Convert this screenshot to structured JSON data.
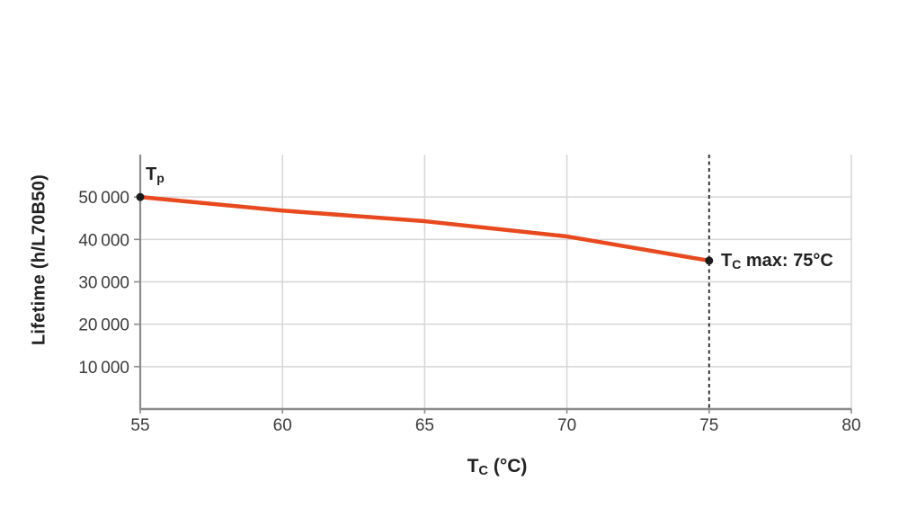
{
  "chart_data": {
    "type": "line",
    "title": "",
    "xlabel": "Tc (°C)",
    "ylabel": "Lifetime (h/L70B50)",
    "x": [
      55,
      60,
      65,
      70,
      75
    ],
    "y": [
      50000,
      46800,
      44300,
      40700,
      35000
    ],
    "xlim": [
      55,
      80
    ],
    "ylim": [
      0,
      60000
    ],
    "xticks": [
      55,
      60,
      65,
      70,
      75,
      80
    ],
    "yticks": [
      10000,
      20000,
      30000,
      40000,
      50000
    ],
    "ytick_labels": [
      "10 000",
      "20 000",
      "30 000",
      "40 000",
      "50 000"
    ],
    "grid": true,
    "legend": "none",
    "vline": {
      "x": 75,
      "style": "dashed",
      "color": "#333333"
    },
    "annotations": [
      {
        "text": "Tp",
        "x": 55,
        "y": 50000,
        "position": "above-right"
      },
      {
        "text": "Tc max: 75°C",
        "x": 75,
        "y": 35000,
        "position": "right"
      }
    ],
    "colors": {
      "line": "#e8491e",
      "marker": "#1c1c1c",
      "grid": "#d6d6d6",
      "axis": "#8c8c8c",
      "tick_text": "#3b3b3b"
    }
  },
  "labels": {
    "ylabel": "Lifetime (h/L70B50)",
    "xlabel": {
      "main": "T",
      "sub": "C",
      "rest": " (°C)"
    },
    "tp": {
      "main": "T",
      "sub": "p"
    },
    "tc_max": {
      "main": "T",
      "sub": "C",
      "rest": " max: 75°C"
    }
  }
}
